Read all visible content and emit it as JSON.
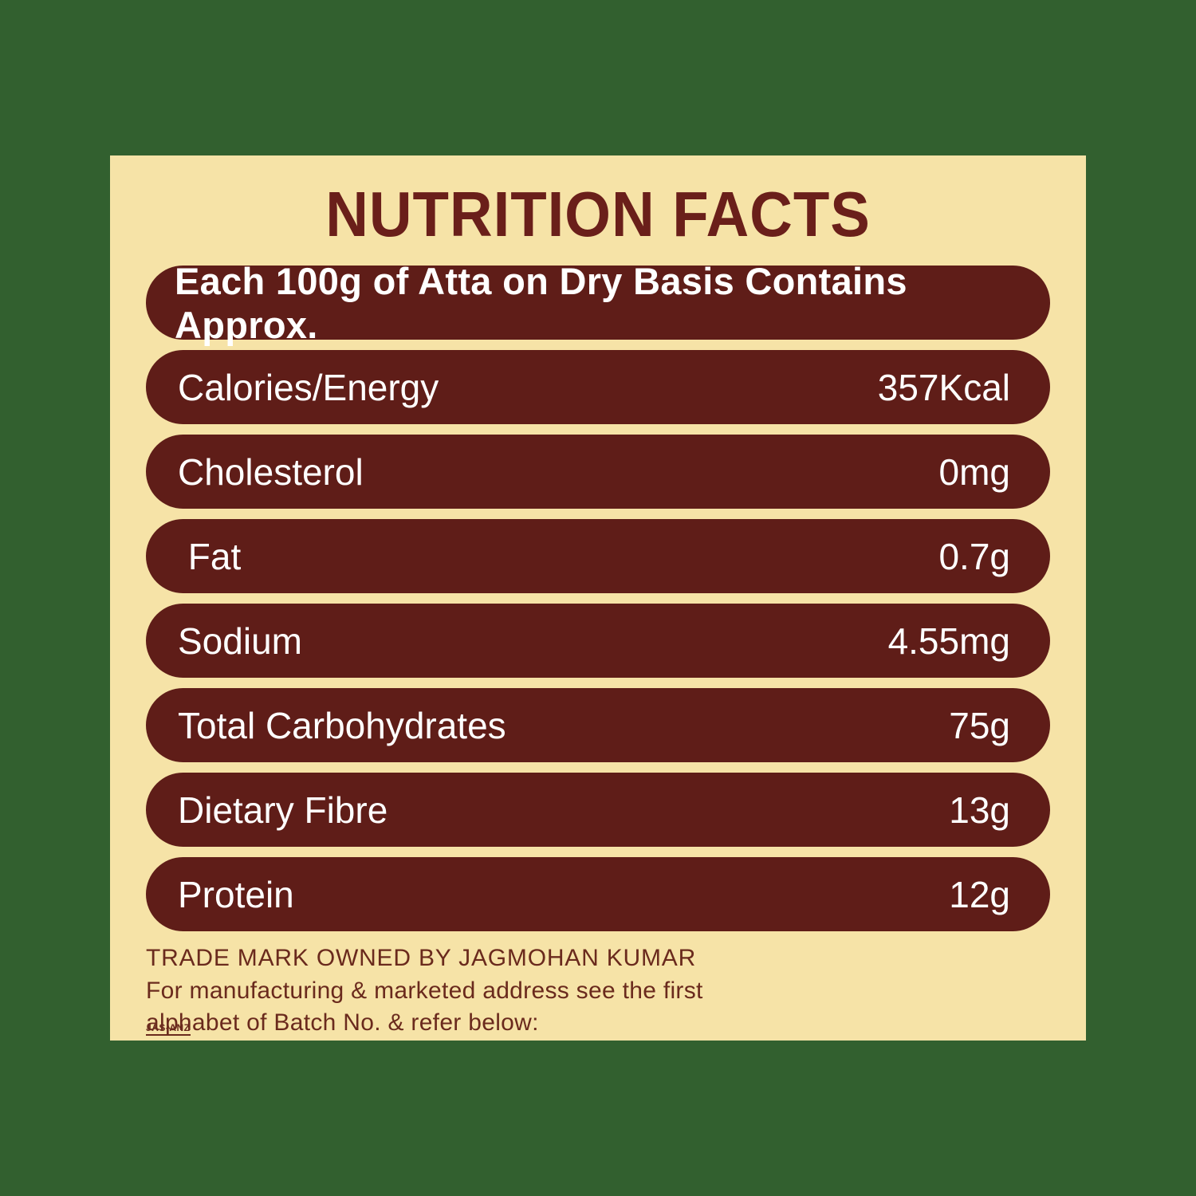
{
  "title": "NUTRITION FACTS",
  "header": "Each 100g of Atta on Dry Basis Contains Approx.",
  "rows": [
    {
      "label": "Calories/Energy",
      "value": "357Kcal"
    },
    {
      "label": "Cholesterol",
      "value": "0mg"
    },
    {
      "label": " Fat",
      "value": "0.7g"
    },
    {
      "label": "Sodium",
      "value": "4.55mg"
    },
    {
      "label": "Total Carbohydrates",
      "value": "75g"
    },
    {
      "label": "Dietary Fibre",
      "value": "13g"
    },
    {
      "label": "Protein",
      "value": "12g"
    }
  ],
  "footer": {
    "line1": "TRADE MARK OWNED BY JAGMOHAN KUMAR",
    "line2": "For manufacturing & marketed address see the first",
    "line3": "alphabet of Batch No. & refer below:"
  },
  "mark": "JAS-ANZ",
  "colors": {
    "page_bg": "#32602f",
    "panel_bg": "#f6e3a7",
    "pill_bg": "#5f1d18",
    "pill_text": "#ffffff",
    "title_color": "#6a1f1a",
    "footer_color": "#6a2a1d"
  }
}
